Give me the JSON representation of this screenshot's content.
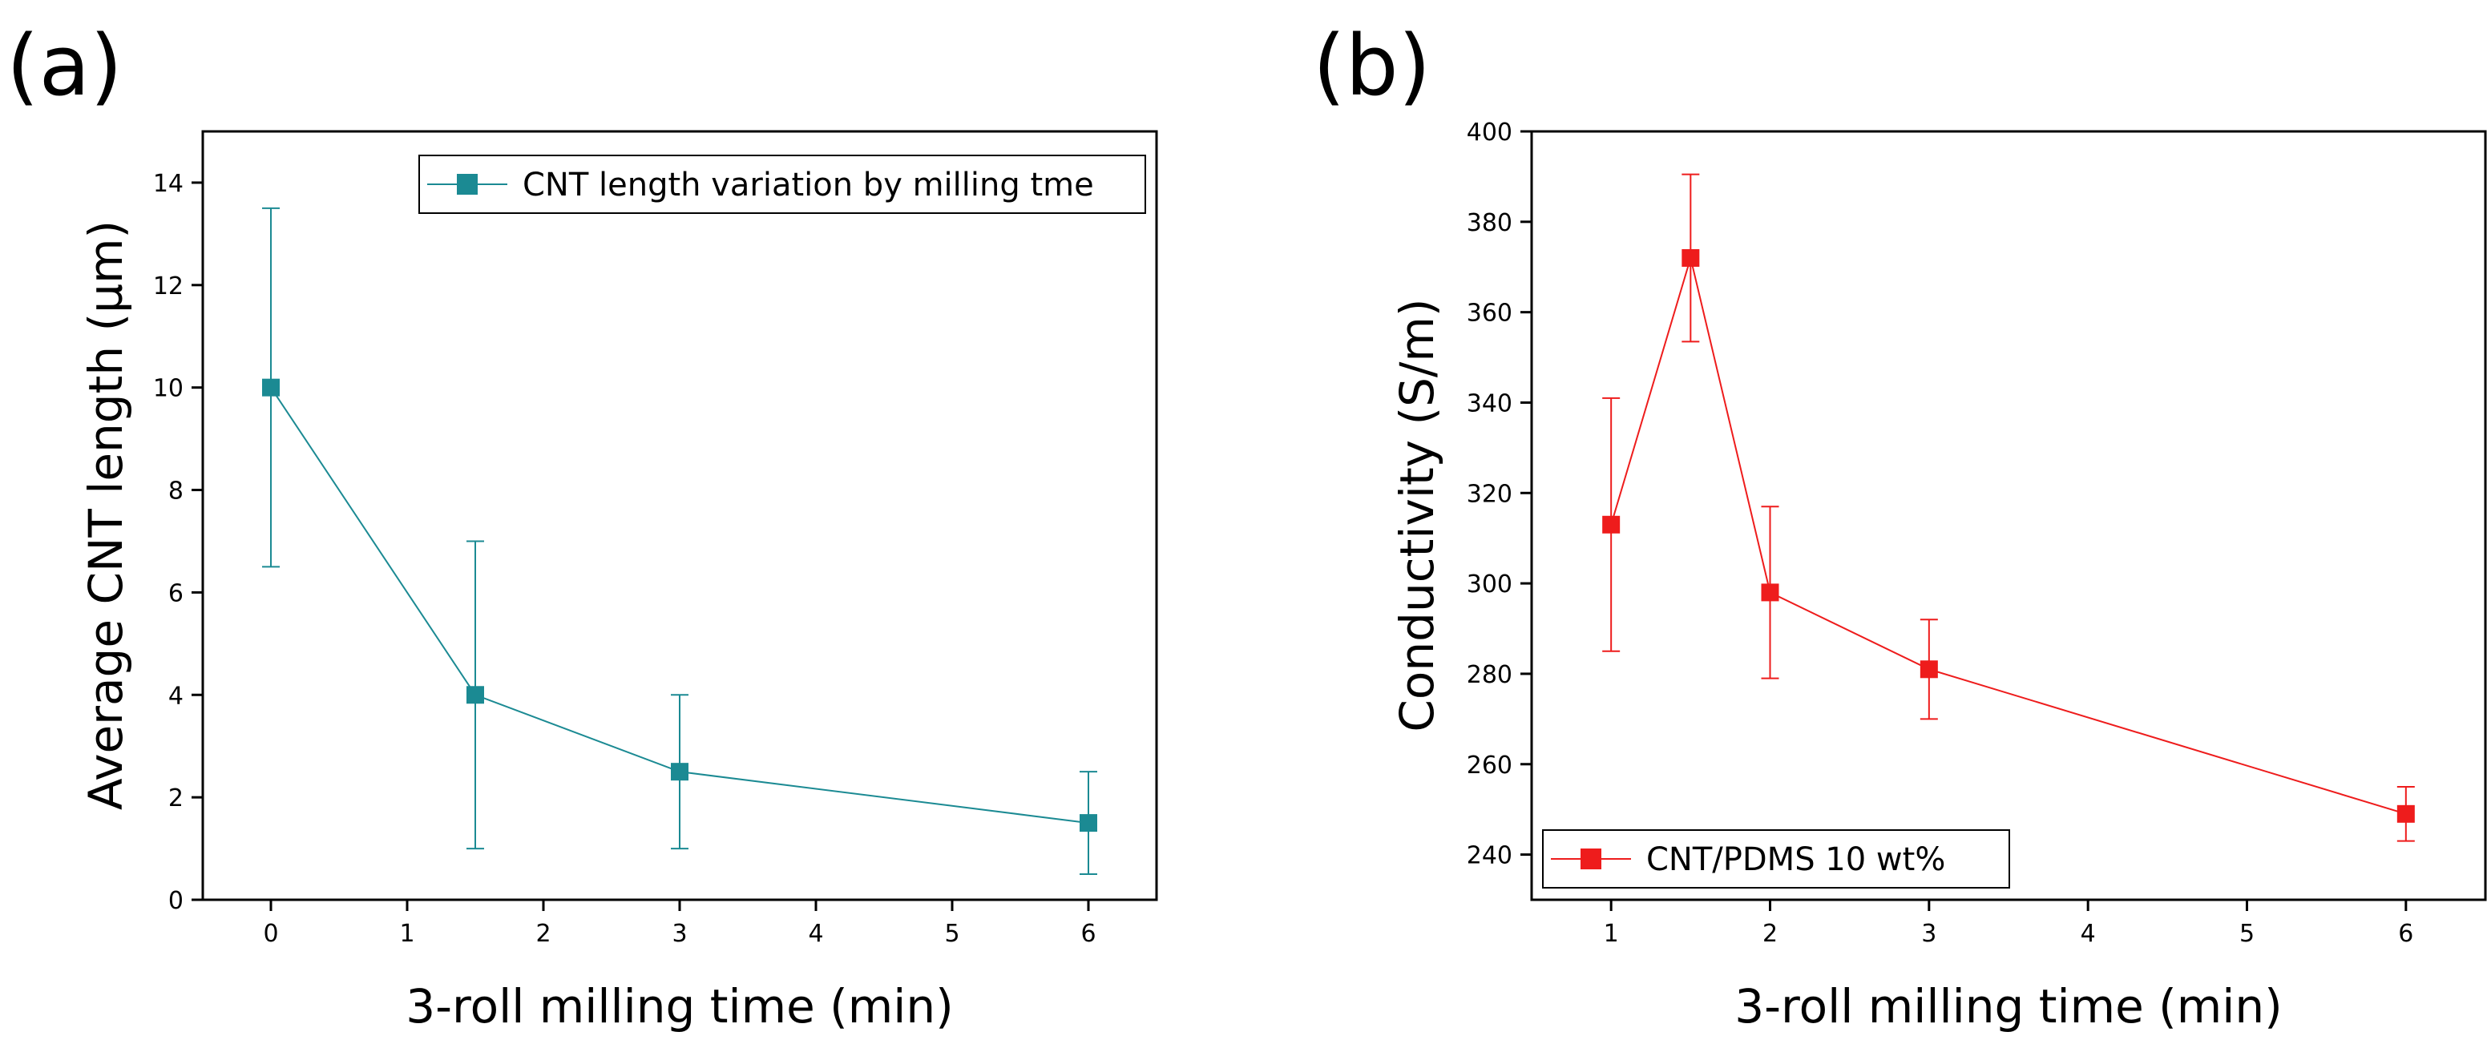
{
  "chart_data": [
    {
      "type": "line",
      "panel_label": "(a)",
      "title": "",
      "xlabel": "3-roll milling time (min)",
      "ylabel": "Average CNT length (µm)",
      "xlim": [
        -0.5,
        6.5
      ],
      "ylim": [
        0,
        15
      ],
      "xticks": [
        0,
        1,
        2,
        3,
        4,
        5,
        6
      ],
      "yticks": [
        0,
        2,
        4,
        6,
        8,
        10,
        12,
        14
      ],
      "grid": false,
      "legend_position": "top-right",
      "series": [
        {
          "name": "CNT length variation by milling tme",
          "color": "#1B8A93",
          "marker": "square",
          "points": [
            {
              "x": 0,
              "y": 10,
              "err_low": 6.5,
              "err_high": 13.5
            },
            {
              "x": 1.5,
              "y": 4,
              "err_low": 1,
              "err_high": 7
            },
            {
              "x": 3,
              "y": 2.5,
              "err_low": 1,
              "err_high": 4
            },
            {
              "x": 6,
              "y": 1.5,
              "err_low": 0.5,
              "err_high": 2.5
            }
          ]
        }
      ]
    },
    {
      "type": "line",
      "panel_label": "(b)",
      "title": "",
      "xlabel": "3-roll milling time (min)",
      "ylabel": "Conductivity (S/m)",
      "xlim": [
        0.5,
        6.5
      ],
      "ylim": [
        230,
        400
      ],
      "xticks": [
        1,
        2,
        3,
        4,
        5,
        6
      ],
      "yticks": [
        240,
        260,
        280,
        300,
        320,
        340,
        360,
        380,
        400
      ],
      "grid": false,
      "legend_position": "bottom-left",
      "series": [
        {
          "name": "CNT/PDMS 10 wt%",
          "color": "#EE1C1C",
          "marker": "square",
          "points": [
            {
              "x": 1,
              "y": 313,
              "err_low": 285,
              "err_high": 341
            },
            {
              "x": 1.5,
              "y": 372,
              "err_low": 353.5,
              "err_high": 390.5
            },
            {
              "x": 2,
              "y": 298,
              "err_low": 279,
              "err_high": 317
            },
            {
              "x": 3,
              "y": 281,
              "err_low": 270,
              "err_high": 292
            },
            {
              "x": 6,
              "y": 249,
              "err_low": 243,
              "err_high": 255
            }
          ]
        }
      ]
    }
  ]
}
